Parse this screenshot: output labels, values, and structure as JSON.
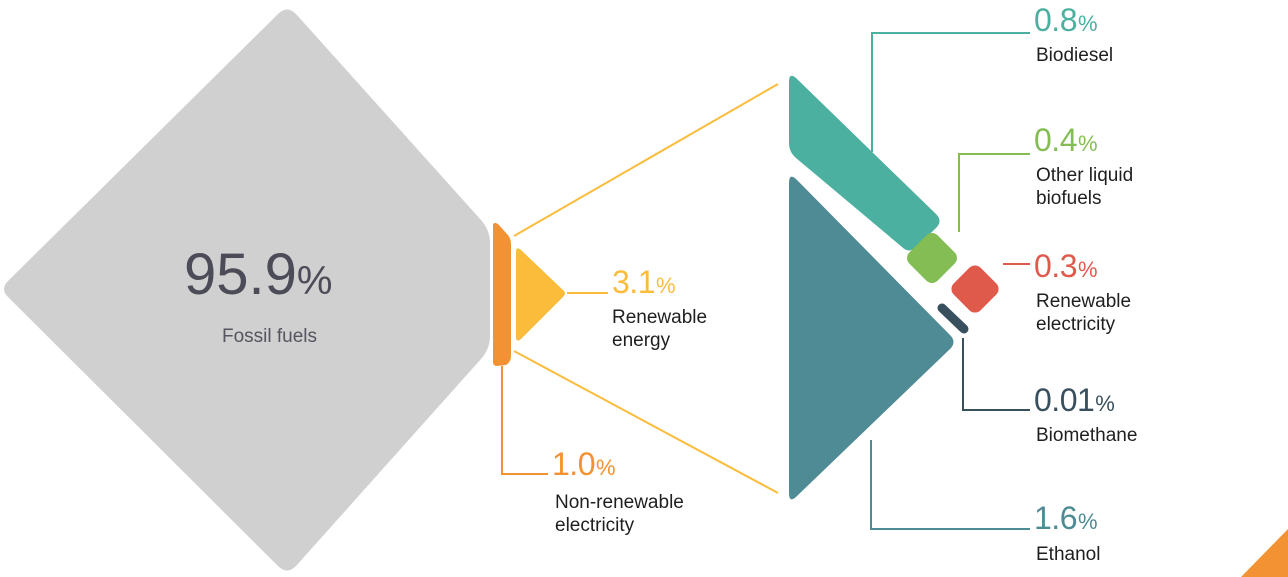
{
  "colors": {
    "fossil": "#d0d0d0",
    "non_renewable_elec": "#f39232",
    "renewable_energy": "#fbbc3b",
    "biodiesel": "#4bb09f",
    "ethanol": "#4e8b95",
    "other_liquid": "#85bd55",
    "renewable_elec": "#e05a4c",
    "biomethane": "#38505e",
    "fossil_text": "#4c4c58",
    "accent_corner": "#f39232"
  },
  "fossil": {
    "value": "95.9",
    "unit": "%",
    "label": "Fossil fuels"
  },
  "non_renewable_electricity": {
    "value": "1.0",
    "unit": "%",
    "label_line1": "Non-renewable",
    "label_line2": "electricity"
  },
  "renewable_energy": {
    "value": "3.1",
    "unit": "%",
    "label_line1": "Renewable",
    "label_line2": "energy"
  },
  "breakdown": {
    "biodiesel": {
      "value": "0.8",
      "unit": "%",
      "label": "Biodiesel"
    },
    "other_liquid_biofuels": {
      "value": "0.4",
      "unit": "%",
      "label_line1": "Other liquid",
      "label_line2": "biofuels"
    },
    "renewable_electricity": {
      "value": "0.3",
      "unit": "%",
      "label_line1": "Renewable",
      "label_line2": "electricity"
    },
    "biomethane": {
      "value": "0.01",
      "unit": "%",
      "label": "Biomethane"
    },
    "ethanol": {
      "value": "1.6",
      "unit": "%",
      "label": "Ethanol"
    }
  }
}
